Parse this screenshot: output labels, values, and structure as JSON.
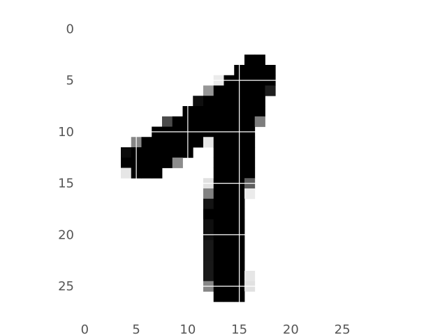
{
  "chart_data": {
    "type": "heatmap",
    "title": "",
    "xlabel": "",
    "ylabel": "",
    "colormap": "gray_r",
    "value_range": [
      0,
      255
    ],
    "shape": [
      28,
      28
    ],
    "xlim": [
      -0.5,
      27.5
    ],
    "ylim": [
      27.5,
      -0.5
    ],
    "grid": true,
    "x_ticks": [
      "0",
      "5",
      "10",
      "15",
      "20",
      "25"
    ],
    "y_ticks": [
      "0",
      "5",
      "10",
      "15",
      "20",
      "25"
    ],
    "cells": [
      [
        3,
        16,
        255
      ],
      [
        3,
        17,
        255
      ],
      [
        4,
        15,
        255
      ],
      [
        4,
        16,
        255
      ],
      [
        4,
        17,
        255
      ],
      [
        4,
        18,
        255
      ],
      [
        5,
        13,
        20
      ],
      [
        5,
        14,
        255
      ],
      [
        5,
        15,
        255
      ],
      [
        5,
        16,
        255
      ],
      [
        5,
        17,
        255
      ],
      [
        5,
        18,
        255
      ],
      [
        6,
        12,
        105
      ],
      [
        6,
        13,
        255
      ],
      [
        6,
        14,
        255
      ],
      [
        6,
        15,
        255
      ],
      [
        6,
        16,
        255
      ],
      [
        6,
        17,
        255
      ],
      [
        6,
        18,
        225
      ],
      [
        7,
        11,
        240
      ],
      [
        7,
        12,
        255
      ],
      [
        7,
        13,
        255
      ],
      [
        7,
        14,
        255
      ],
      [
        7,
        15,
        255
      ],
      [
        7,
        16,
        255
      ],
      [
        7,
        17,
        255
      ],
      [
        8,
        10,
        255
      ],
      [
        8,
        11,
        255
      ],
      [
        8,
        12,
        255
      ],
      [
        8,
        13,
        255
      ],
      [
        8,
        14,
        255
      ],
      [
        8,
        15,
        255
      ],
      [
        8,
        16,
        255
      ],
      [
        8,
        17,
        255
      ],
      [
        9,
        8,
        180
      ],
      [
        9,
        9,
        255
      ],
      [
        9,
        10,
        255
      ],
      [
        9,
        11,
        255
      ],
      [
        9,
        12,
        255
      ],
      [
        9,
        13,
        255
      ],
      [
        9,
        14,
        255
      ],
      [
        9,
        15,
        255
      ],
      [
        9,
        16,
        255
      ],
      [
        9,
        17,
        130
      ],
      [
        10,
        7,
        255
      ],
      [
        10,
        8,
        255
      ],
      [
        10,
        9,
        255
      ],
      [
        10,
        10,
        255
      ],
      [
        10,
        11,
        255
      ],
      [
        10,
        12,
        255
      ],
      [
        10,
        13,
        255
      ],
      [
        10,
        14,
        255
      ],
      [
        10,
        15,
        255
      ],
      [
        10,
        16,
        255
      ],
      [
        11,
        5,
        120
      ],
      [
        11,
        6,
        255
      ],
      [
        11,
        7,
        255
      ],
      [
        11,
        8,
        255
      ],
      [
        11,
        9,
        255
      ],
      [
        11,
        10,
        255
      ],
      [
        11,
        11,
        255
      ],
      [
        11,
        12,
        25
      ],
      [
        11,
        13,
        255
      ],
      [
        11,
        14,
        255
      ],
      [
        11,
        15,
        255
      ],
      [
        11,
        16,
        255
      ],
      [
        12,
        4,
        245
      ],
      [
        12,
        5,
        255
      ],
      [
        12,
        6,
        255
      ],
      [
        12,
        7,
        255
      ],
      [
        12,
        8,
        255
      ],
      [
        12,
        9,
        255
      ],
      [
        12,
        10,
        255
      ],
      [
        12,
        13,
        255
      ],
      [
        12,
        14,
        255
      ],
      [
        12,
        15,
        255
      ],
      [
        12,
        16,
        255
      ],
      [
        13,
        4,
        255
      ],
      [
        13,
        5,
        255
      ],
      [
        13,
        6,
        255
      ],
      [
        13,
        7,
        255
      ],
      [
        13,
        8,
        255
      ],
      [
        13,
        9,
        115
      ],
      [
        13,
        13,
        255
      ],
      [
        13,
        14,
        255
      ],
      [
        13,
        15,
        255
      ],
      [
        13,
        16,
        255
      ],
      [
        14,
        4,
        25
      ],
      [
        14,
        5,
        255
      ],
      [
        14,
        6,
        255
      ],
      [
        14,
        7,
        255
      ],
      [
        14,
        13,
        255
      ],
      [
        14,
        14,
        255
      ],
      [
        14,
        15,
        255
      ],
      [
        14,
        16,
        255
      ],
      [
        15,
        12,
        30
      ],
      [
        15,
        13,
        255
      ],
      [
        15,
        14,
        255
      ],
      [
        15,
        15,
        255
      ],
      [
        15,
        16,
        160
      ],
      [
        16,
        12,
        125
      ],
      [
        16,
        13,
        255
      ],
      [
        16,
        14,
        255
      ],
      [
        16,
        15,
        255
      ],
      [
        16,
        16,
        20
      ],
      [
        17,
        12,
        235
      ],
      [
        17,
        13,
        255
      ],
      [
        17,
        14,
        255
      ],
      [
        17,
        15,
        255
      ],
      [
        18,
        12,
        255
      ],
      [
        18,
        13,
        255
      ],
      [
        18,
        14,
        255
      ],
      [
        18,
        15,
        255
      ],
      [
        19,
        12,
        240
      ],
      [
        19,
        13,
        255
      ],
      [
        19,
        14,
        255
      ],
      [
        19,
        15,
        255
      ],
      [
        20,
        12,
        240
      ],
      [
        20,
        13,
        255
      ],
      [
        20,
        14,
        255
      ],
      [
        20,
        15,
        255
      ],
      [
        21,
        12,
        230
      ],
      [
        21,
        13,
        255
      ],
      [
        21,
        14,
        255
      ],
      [
        21,
        15,
        255
      ],
      [
        22,
        12,
        230
      ],
      [
        22,
        13,
        255
      ],
      [
        22,
        14,
        255
      ],
      [
        22,
        15,
        255
      ],
      [
        23,
        12,
        230
      ],
      [
        23,
        13,
        255
      ],
      [
        23,
        14,
        255
      ],
      [
        23,
        15,
        255
      ],
      [
        24,
        12,
        230
      ],
      [
        24,
        13,
        255
      ],
      [
        24,
        14,
        255
      ],
      [
        24,
        15,
        255
      ],
      [
        24,
        16,
        25
      ],
      [
        25,
        12,
        120
      ],
      [
        25,
        13,
        255
      ],
      [
        25,
        14,
        255
      ],
      [
        25,
        15,
        255
      ],
      [
        25,
        16,
        30
      ],
      [
        26,
        13,
        255
      ],
      [
        26,
        14,
        255
      ],
      [
        26,
        15,
        255
      ]
    ]
  }
}
